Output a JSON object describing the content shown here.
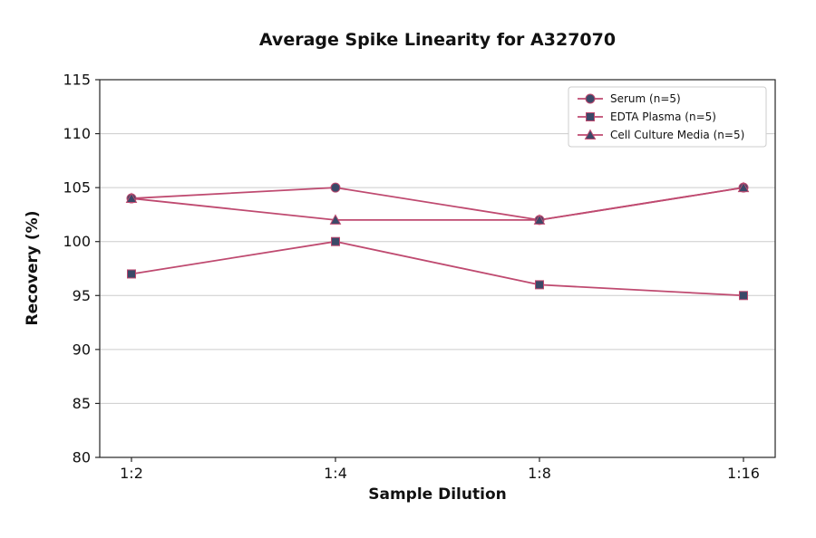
{
  "chart_data": {
    "type": "line",
    "title": "Average Spike Linearity for A327070",
    "xlabel": "Sample Dilution",
    "ylabel": "Recovery (%)",
    "categories": [
      "1:2",
      "1:4",
      "1:8",
      "1:16"
    ],
    "ylim": [
      80,
      115
    ],
    "yticks": [
      80,
      85,
      90,
      95,
      100,
      105,
      110,
      115
    ],
    "grid": "horizontal",
    "legend_position": "upper right",
    "line_color": "#bf4a70",
    "marker_color": "#3b4968",
    "axis_color": "#262626",
    "grid_color": "#cccccc",
    "series": [
      {
        "name": "Serum (n=5)",
        "marker": "circle",
        "values": [
          104,
          105,
          102,
          105
        ]
      },
      {
        "name": "EDTA Plasma (n=5)",
        "marker": "square",
        "values": [
          97,
          100,
          96,
          95
        ]
      },
      {
        "name": "Cell Culture Media (n=5)",
        "marker": "triangle",
        "values": [
          104,
          102,
          102,
          105
        ]
      }
    ]
  }
}
